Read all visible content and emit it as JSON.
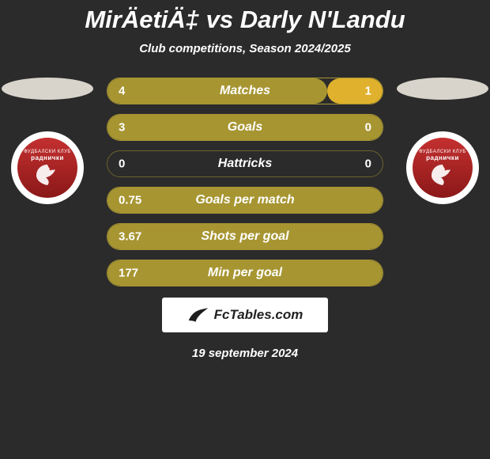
{
  "title": "MirÄetiÄ‡ vs Darly N'Landu",
  "subtitle": "Club competitions, Season 2024/2025",
  "date": "19 september 2024",
  "brand": "FcTables.com",
  "colors": {
    "background": "#2b2b2b",
    "bar_fill": "#a79532",
    "bar_border": "#a79532",
    "bar_highlight": "#e0b12c",
    "bar_empty_border": "#6d642e",
    "oval_left": "#d8d4cc",
    "oval_right": "#d8d4cc",
    "logo_bg": "#ffffff",
    "logo_red": "#b22222",
    "brand_bg": "#ffffff",
    "brand_text": "#1e1e1e",
    "text": "#ffffff"
  },
  "sides": {
    "left": {
      "oval_color": "#d8d4cc",
      "club_text": "ФУДБАЛСКИ КЛУБ",
      "club_name": "раднички"
    },
    "right": {
      "oval_color": "#d8d4cc",
      "club_text": "ФУДБАЛСКИ КЛУБ",
      "club_name": "раднички"
    }
  },
  "bars": [
    {
      "label": "Matches",
      "left": "4",
      "right": "1",
      "left_display": "4",
      "right_display": "1",
      "left_pct": 80,
      "right_pct": 20,
      "show_right": true,
      "border": "#a79532",
      "highlight_left": true
    },
    {
      "label": "Goals",
      "left": "3",
      "right": "0",
      "left_display": "3",
      "right_display": "0",
      "left_pct": 100,
      "right_pct": 0,
      "show_right": true,
      "border": "#a79532",
      "highlight_left": false
    },
    {
      "label": "Hattricks",
      "left": "0",
      "right": "0",
      "left_display": "0",
      "right_display": "0",
      "left_pct": 0,
      "right_pct": 0,
      "show_right": true,
      "border": "#6d642e",
      "highlight_left": false
    },
    {
      "label": "Goals per match",
      "left": "0.75",
      "right": "",
      "left_display": "0.75",
      "right_display": "",
      "left_pct": 100,
      "right_pct": 0,
      "show_right": false,
      "border": "#a79532",
      "highlight_left": false
    },
    {
      "label": "Shots per goal",
      "left": "3.67",
      "right": "",
      "left_display": "3.67",
      "right_display": "",
      "left_pct": 100,
      "right_pct": 0,
      "show_right": false,
      "border": "#a79532",
      "highlight_left": false
    },
    {
      "label": "Min per goal",
      "left": "177",
      "right": "",
      "left_display": "177",
      "right_display": "",
      "left_pct": 100,
      "right_pct": 0,
      "show_right": false,
      "border": "#a79532",
      "highlight_left": false
    }
  ]
}
